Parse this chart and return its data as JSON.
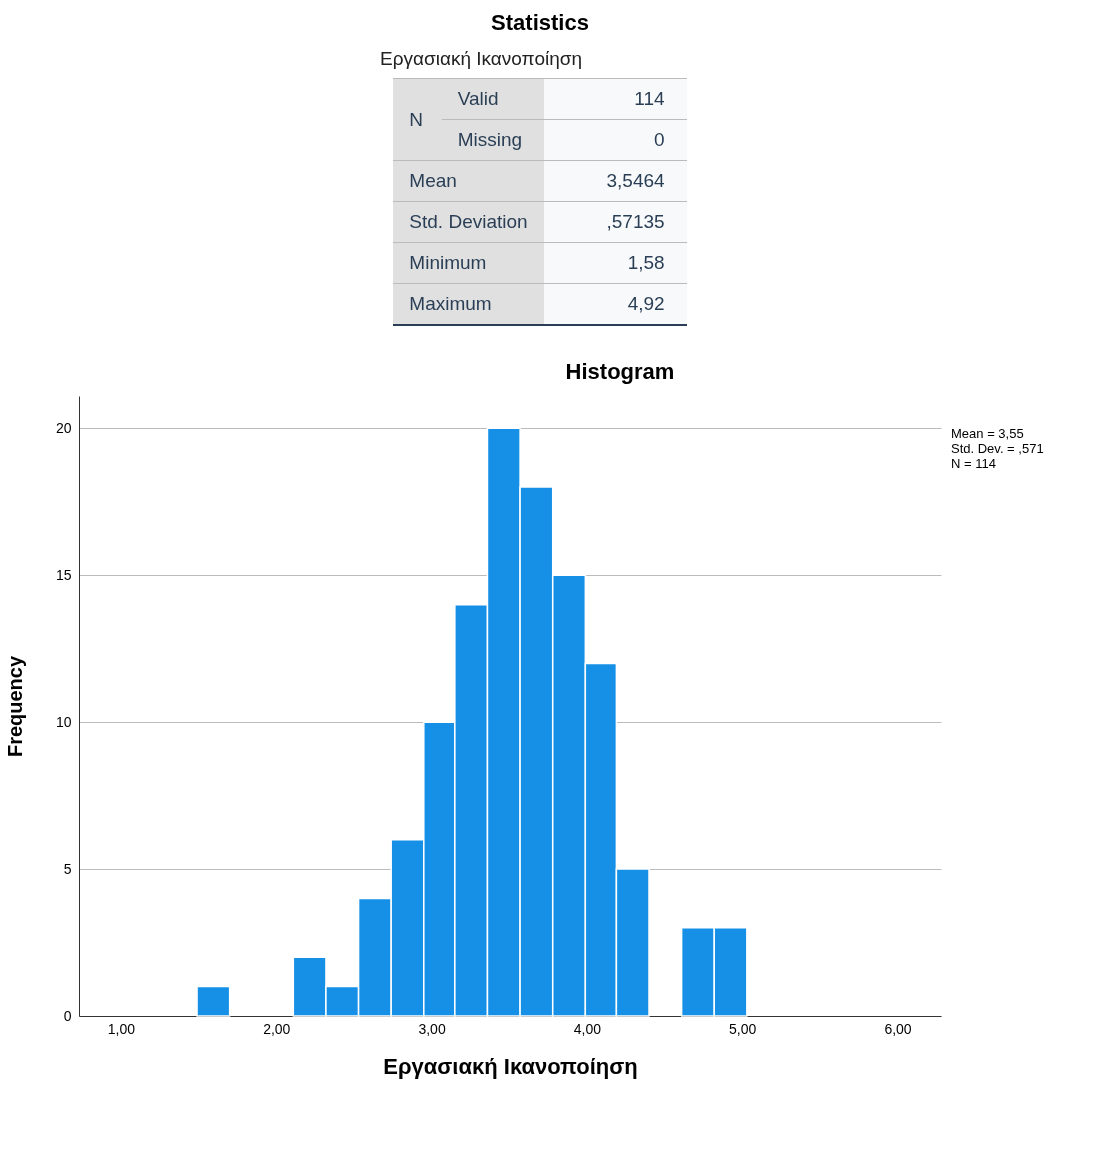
{
  "chart_data": [
    {
      "type": "other",
      "title": "Statistics",
      "subtitle": "Εργασιακή Ικανοποίηση",
      "annotations": [
        "N",
        "Valid",
        "114",
        "Missing",
        "0",
        "Mean",
        "3,5464",
        "Std. Deviation",
        ",57135",
        "Minimum",
        "1,58",
        "Maximum",
        "4,92"
      ]
    },
    {
      "type": "histogram",
      "title": "Histogram",
      "xlabel": "Εργασιακή Ικανοποίηση",
      "ylabel": "Frequency",
      "bins": [
        1.49,
        1.7,
        2.11,
        2.32,
        2.53,
        2.74,
        2.95,
        3.15,
        3.36,
        3.57,
        3.78,
        3.99,
        4.19,
        4.4,
        4.61,
        4.82,
        5.03
      ],
      "values": [
        1,
        0,
        2,
        1,
        4,
        6,
        10,
        14,
        20,
        18,
        15,
        12,
        5,
        0,
        3,
        3
      ],
      "color": "#1590e6",
      "xlim": [
        0.73,
        6.28
      ],
      "ylim": [
        0,
        21.1
      ],
      "xticks": [
        {
          "value": 1,
          "label": "1,00"
        },
        {
          "value": 2,
          "label": "2,00"
        },
        {
          "value": 3,
          "label": "3,00"
        },
        {
          "value": 4,
          "label": "4,00"
        },
        {
          "value": 5,
          "label": "5,00"
        },
        {
          "value": 6,
          "label": "6,00"
        }
      ],
      "yticks": [
        0,
        5,
        10,
        15,
        20
      ],
      "grid": "y",
      "annotations": [
        "Mean = 3,55",
        "Std. Dev. = ,571",
        "N = 114"
      ]
    }
  ]
}
